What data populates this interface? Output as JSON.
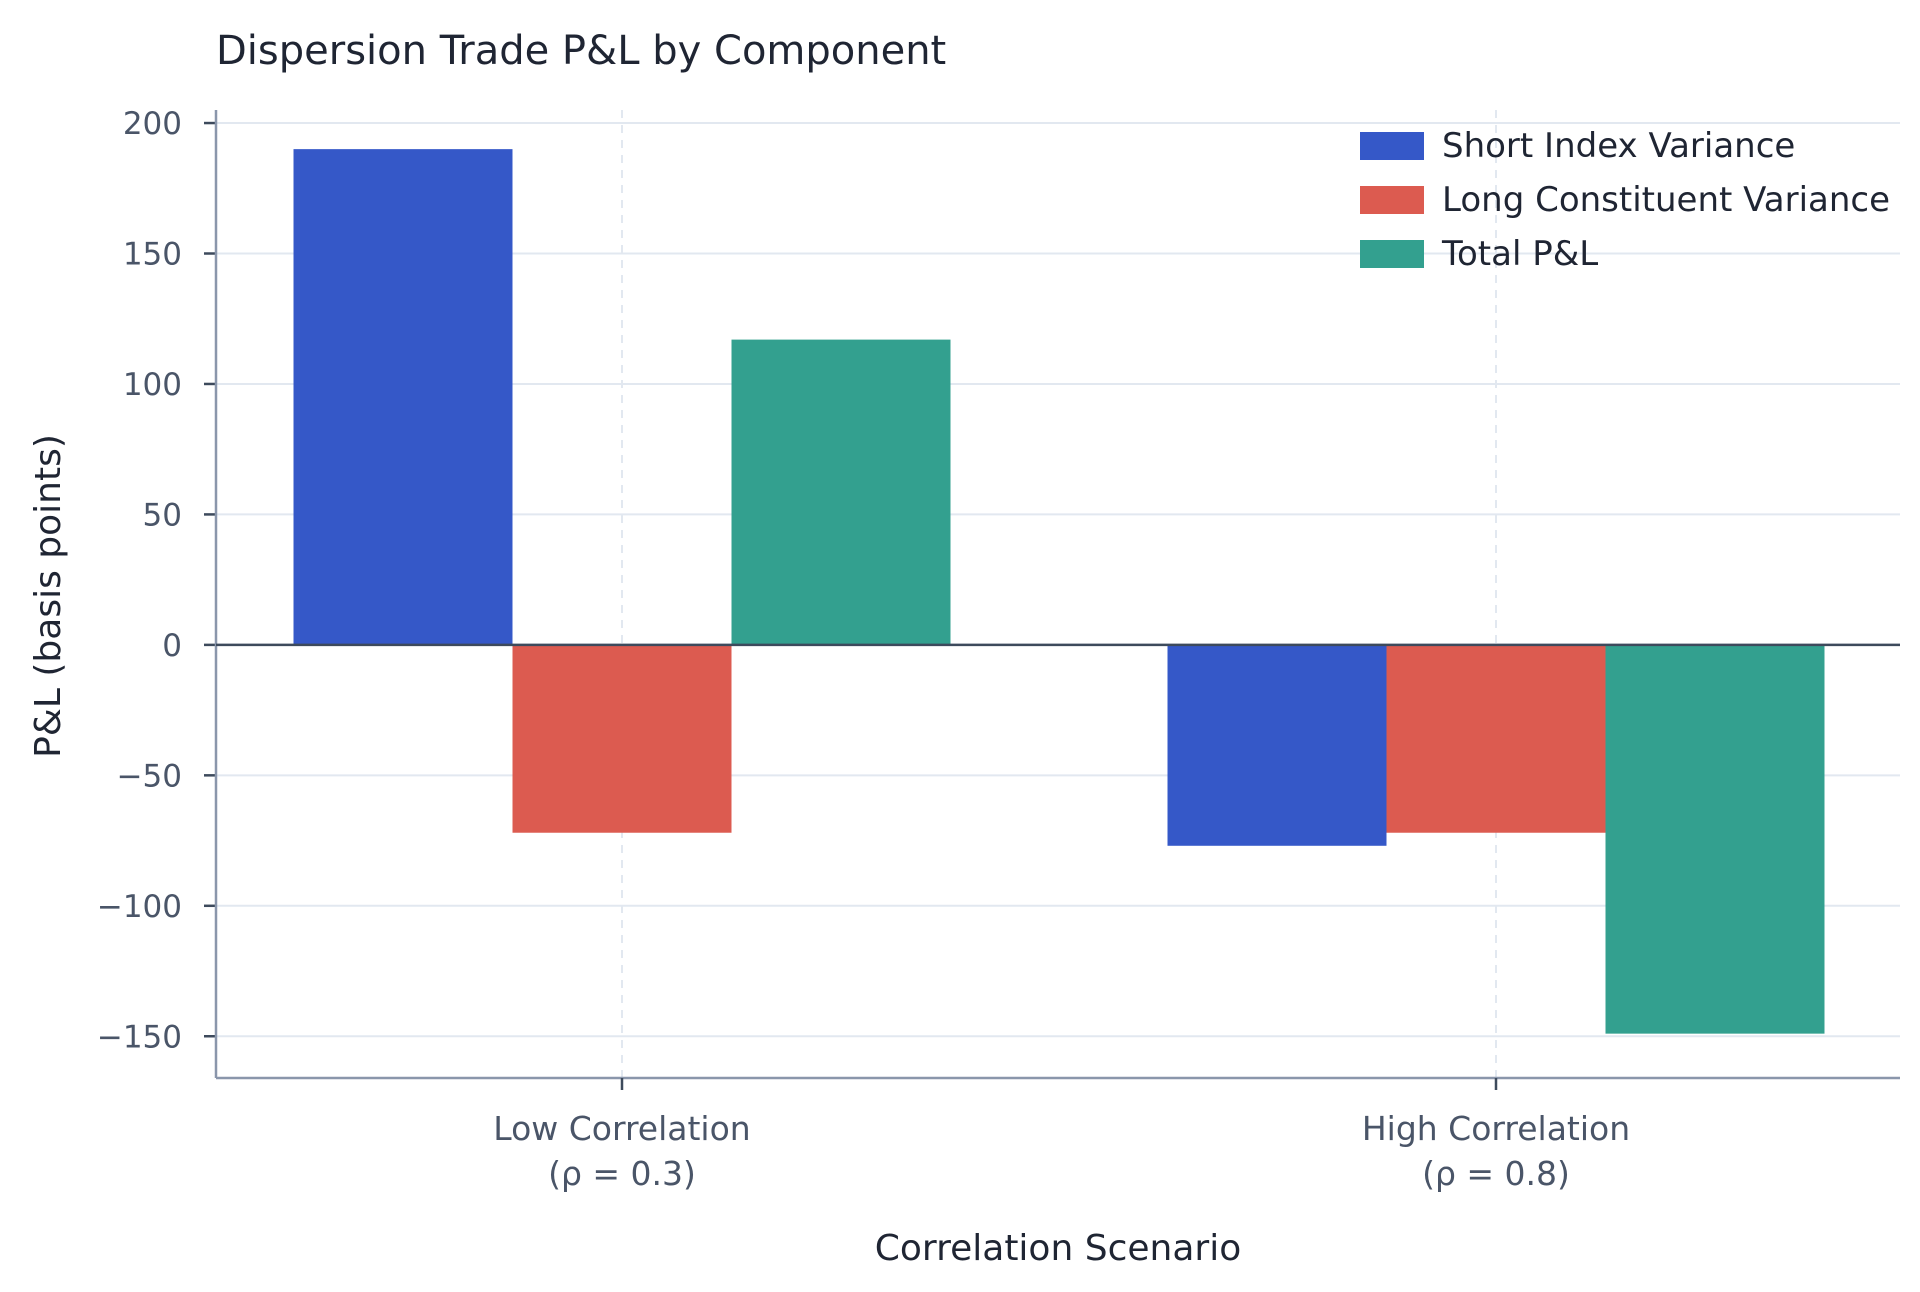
{
  "chart_data": {
    "type": "bar",
    "title": "Dispersion Trade P&L by Component",
    "xlabel": "Correlation Scenario",
    "ylabel": "P&L (basis points)",
    "categories": [
      {
        "line1": "Low Correlation",
        "line2": "(ρ = 0.3)"
      },
      {
        "line1": "High Correlation",
        "line2": "(ρ = 0.8)"
      }
    ],
    "series": [
      {
        "name": "Short Index Variance",
        "color": "#3558c8",
        "values": [
          190,
          -77
        ]
      },
      {
        "name": "Long Constituent Variance",
        "color": "#dc5b50",
        "values": [
          -72,
          -72
        ]
      },
      {
        "name": "Total P&L",
        "color": "#33a08f",
        "values": [
          117,
          -149
        ]
      }
    ],
    "ylim": [
      -166,
      205
    ],
    "yticks": [
      -150,
      -100,
      -50,
      0,
      50,
      100,
      150,
      200
    ],
    "grid": true,
    "legend": "top-right"
  }
}
